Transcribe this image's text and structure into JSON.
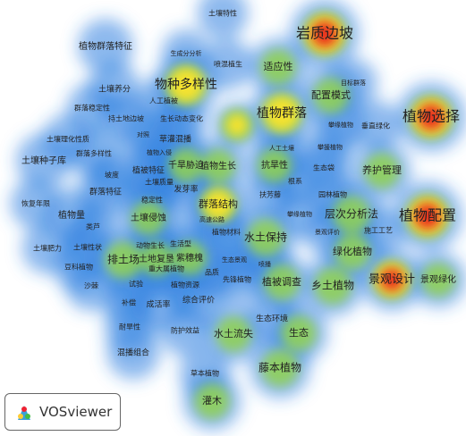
{
  "nodes": [
    {
      "label": "土壤特性"
    },
    {
      "label": "岩质边坡"
    },
    {
      "label": "植物群落特征"
    },
    {
      "label": "生成分分析"
    },
    {
      "label": "喷混植生"
    },
    {
      "label": "适应性"
    },
    {
      "label": "目标群落"
    },
    {
      "label": "物种多样性"
    },
    {
      "label": "配置模式"
    },
    {
      "label": "土壤养分"
    },
    {
      "label": "人工植被"
    },
    {
      "label": "群落稳定性"
    },
    {
      "label": "植物群落"
    },
    {
      "label": "植物选择"
    },
    {
      "label": "持土地边坡"
    },
    {
      "label": "生长动态变化"
    },
    {
      "label": "攀缘植物"
    },
    {
      "label": "垂直绿化"
    },
    {
      "label": "对照"
    },
    {
      "label": "草灌混播"
    },
    {
      "label": "土壤理化性质"
    },
    {
      "label": "土壤种子库"
    },
    {
      "label": "群落多样性"
    },
    {
      "label": "植物入侵"
    },
    {
      "label": "攀援植物"
    },
    {
      "label": "人工土壤"
    },
    {
      "label": "千旱胁迫"
    },
    {
      "label": "植物生长"
    },
    {
      "label": "抗旱性"
    },
    {
      "label": "生态袋"
    },
    {
      "label": "养护管理"
    },
    {
      "label": "植被特征"
    },
    {
      "label": "坡度"
    },
    {
      "label": "土壤质量"
    },
    {
      "label": "群落特征"
    },
    {
      "label": "发芽率"
    },
    {
      "label": "根系"
    },
    {
      "label": "园林植物"
    },
    {
      "label": "扶芳藤"
    },
    {
      "label": "恢复年限"
    },
    {
      "label": "稳定性"
    },
    {
      "label": "群落结构"
    },
    {
      "label": "植物配置"
    },
    {
      "label": "植物量"
    },
    {
      "label": "土壤侵蚀"
    },
    {
      "label": "攀缘植物"
    },
    {
      "label": "层次分析法"
    },
    {
      "label": "类芦"
    },
    {
      "label": "高速公路"
    },
    {
      "label": "植物材料"
    },
    {
      "label": "景观评价"
    },
    {
      "label": "施工工艺"
    },
    {
      "label": "土壤肥力"
    },
    {
      "label": "土壤性状"
    },
    {
      "label": "动物生长"
    },
    {
      "label": "生活型"
    },
    {
      "label": "水土保持"
    },
    {
      "label": "绿化植物"
    },
    {
      "label": "排土场"
    },
    {
      "label": "土地复垦"
    },
    {
      "label": "紫穗槐"
    },
    {
      "label": "生态景观"
    },
    {
      "label": "喷播"
    },
    {
      "label": "豆科植物"
    },
    {
      "label": "重大属植物"
    },
    {
      "label": "景观设计"
    },
    {
      "label": "景观绿化"
    },
    {
      "label": "品质"
    },
    {
      "label": "先锋植物"
    },
    {
      "label": "植被调查"
    },
    {
      "label": "乡土植物"
    },
    {
      "label": "沙棘"
    },
    {
      "label": "试验"
    },
    {
      "label": "植物资源"
    },
    {
      "label": "补偿"
    },
    {
      "label": "成活率"
    },
    {
      "label": "综合评价"
    },
    {
      "label": "生态环境"
    },
    {
      "label": "耐旱性"
    },
    {
      "label": "防护效益"
    },
    {
      "label": "水土流失"
    },
    {
      "label": "生态"
    },
    {
      "label": "混播组合"
    },
    {
      "label": "草本植物"
    },
    {
      "label": "藤本植物"
    },
    {
      "label": "灌木"
    }
  ],
  "legend": {
    "label": "VOSviewer"
  }
}
